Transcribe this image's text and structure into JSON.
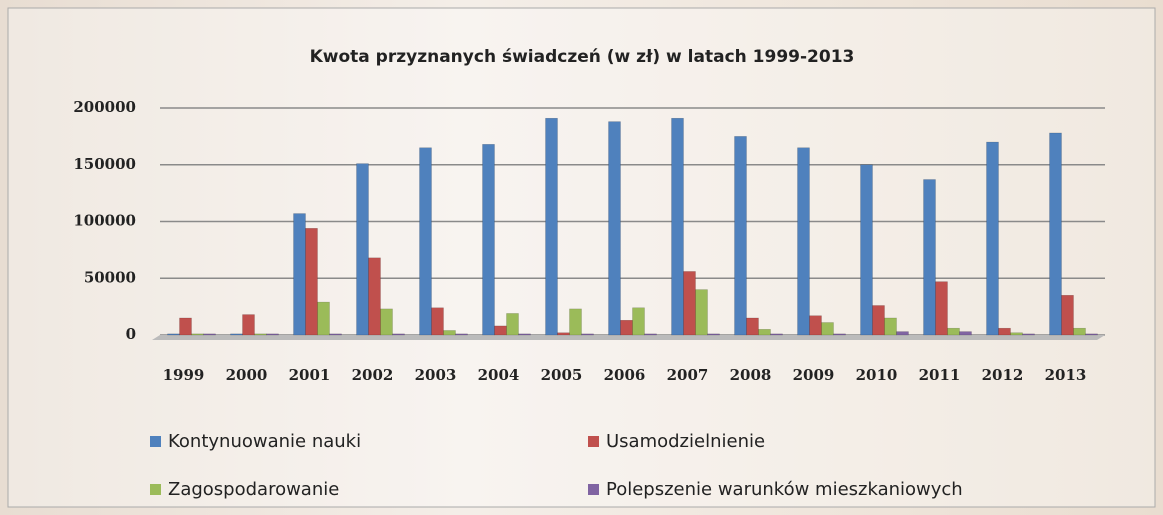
{
  "chart_data": {
    "type": "bar",
    "title": "Kwota przyznanych świadczeń (w zł) w latach 1999-2013",
    "categories": [
      "1999",
      "2000",
      "2001",
      "2002",
      "2003",
      "2004",
      "2005",
      "2006",
      "2007",
      "2008",
      "2009",
      "2010",
      "2011",
      "2012",
      "2013"
    ],
    "series": [
      {
        "name": "Kontynuowanie nauki",
        "color": "#4f81bd",
        "values": [
          1000,
          1000,
          107000,
          151000,
          165000,
          168000,
          191000,
          188000,
          191000,
          175000,
          165000,
          150000,
          137000,
          170000,
          178000
        ]
      },
      {
        "name": "Usamodzielnienie",
        "color": "#c0504d",
        "values": [
          15000,
          18000,
          94000,
          68000,
          24000,
          8000,
          2000,
          13000,
          56000,
          15000,
          17000,
          26000,
          47000,
          6000,
          35000
        ]
      },
      {
        "name": "Zagospodarowanie",
        "color": "#9bbb59",
        "values": [
          1000,
          1000,
          29000,
          23000,
          4000,
          19000,
          23000,
          24000,
          40000,
          5000,
          11000,
          15000,
          6000,
          2000,
          6000
        ]
      },
      {
        "name": "Polepszenie warunków mieszkaniowych",
        "color": "#8064a2",
        "values": [
          1000,
          1000,
          1000,
          1000,
          1000,
          1000,
          1000,
          1000,
          1000,
          1000,
          1000,
          3000,
          3000,
          1000,
          1000
        ]
      }
    ],
    "ylim": [
      0,
      200000
    ],
    "yticks": [
      0,
      50000,
      100000,
      150000,
      200000
    ],
    "grid": true
  }
}
